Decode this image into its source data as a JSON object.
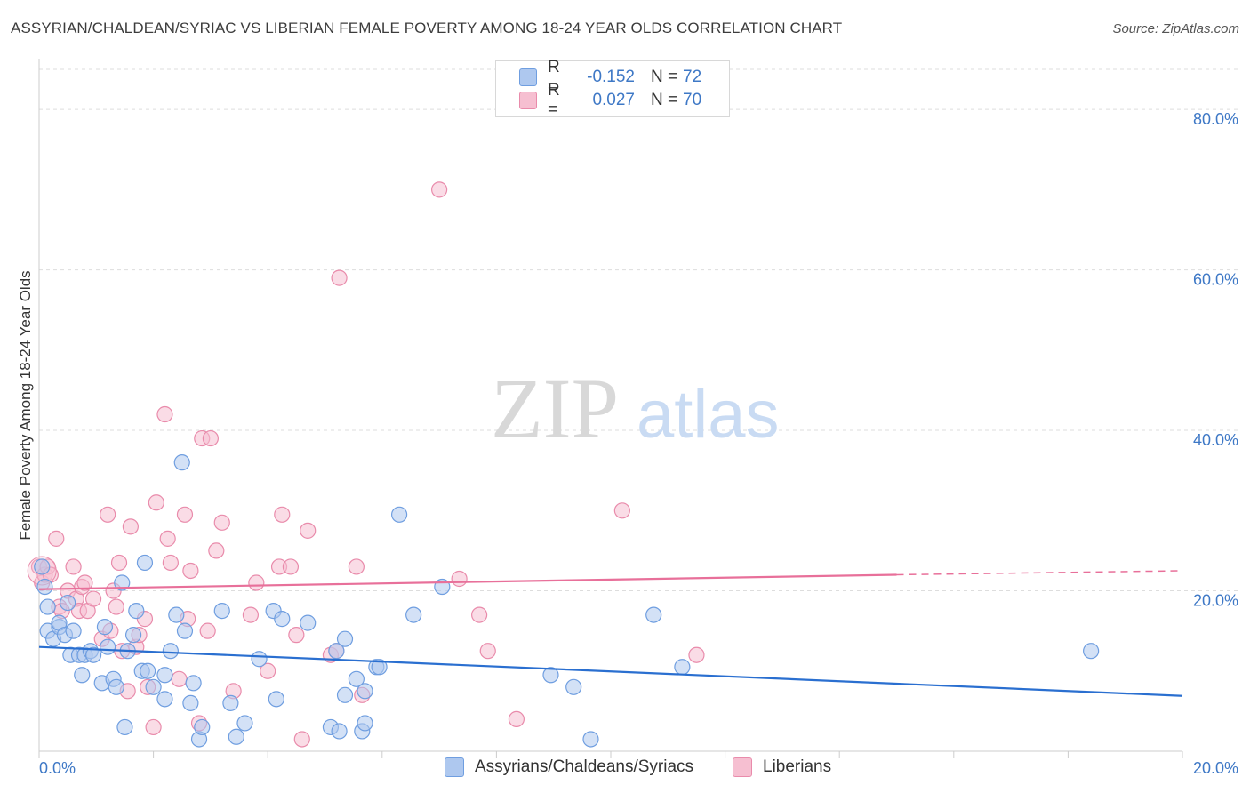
{
  "title": "ASSYRIAN/CHALDEAN/SYRIAC VS LIBERIAN FEMALE POVERTY AMONG 18-24 YEAR OLDS CORRELATION CHART",
  "source": "Source: ZipAtlas.com",
  "watermark": {
    "zip": "ZIP",
    "atlas": "atlas"
  },
  "legend": {
    "rows": [
      {
        "r_label": "R =",
        "r_value": "-0.152",
        "n_label": "N =",
        "n_value": "72"
      },
      {
        "r_label": "R =",
        "r_value": "0.027",
        "n_label": "N =",
        "n_value": "70"
      }
    ]
  },
  "bottom_legend": {
    "series1": "Assyrians/Chaldeans/Syriacs",
    "series2": "Liberians"
  },
  "colors": {
    "blue_fill": "#aec8ef",
    "blue_stroke": "#6f9ee0",
    "blue_line": "#2a6fd0",
    "pink_fill": "#f6bfd1",
    "pink_stroke": "#e98bab",
    "pink_line": "#e8709a",
    "tick_text": "#3e78c6",
    "grid": "#dddddd"
  },
  "chart_data": {
    "type": "scatter",
    "title": "ASSYRIAN/CHALDEAN/SYRIAC VS LIBERIAN FEMALE POVERTY AMONG 18-24 YEAR OLDS CORRELATION CHART",
    "xlabel": "",
    "ylabel": "Female Poverty Among 18-24 Year Olds",
    "xlim": [
      0,
      20
    ],
    "ylim": [
      0,
      85
    ],
    "x_tick_labels": [
      "0.0%",
      "20.0%"
    ],
    "y_ticks": [
      20,
      40,
      60,
      80
    ],
    "y_tick_labels": [
      "20.0%",
      "40.0%",
      "60.0%",
      "80.0%"
    ],
    "grid": true,
    "series": [
      {
        "name": "Assyrians/Chaldeans/Syriacs",
        "trend": {
          "x0": 0,
          "y0": 13.0,
          "x1": 20,
          "y1": 6.9
        },
        "points": [
          [
            0.05,
            23
          ],
          [
            0.1,
            20.5
          ],
          [
            0.15,
            18
          ],
          [
            0.15,
            15
          ],
          [
            0.25,
            14
          ],
          [
            0.35,
            15.5
          ],
          [
            0.35,
            16
          ],
          [
            0.45,
            14.5
          ],
          [
            0.5,
            18.5
          ],
          [
            0.55,
            12
          ],
          [
            0.6,
            15
          ],
          [
            0.7,
            12
          ],
          [
            0.75,
            9.5
          ],
          [
            0.8,
            12
          ],
          [
            0.9,
            12.5
          ],
          [
            0.95,
            12
          ],
          [
            1.1,
            8.5
          ],
          [
            1.15,
            15.5
          ],
          [
            1.2,
            13
          ],
          [
            1.3,
            9
          ],
          [
            1.35,
            8
          ],
          [
            1.45,
            21
          ],
          [
            1.5,
            3
          ],
          [
            1.55,
            12.5
          ],
          [
            1.65,
            14.5
          ],
          [
            1.7,
            17.5
          ],
          [
            1.8,
            10
          ],
          [
            1.85,
            23.5
          ],
          [
            1.9,
            10
          ],
          [
            2.0,
            8
          ],
          [
            2.2,
            6.5
          ],
          [
            2.2,
            9.5
          ],
          [
            2.3,
            12.5
          ],
          [
            2.4,
            17
          ],
          [
            2.5,
            36
          ],
          [
            2.55,
            15
          ],
          [
            2.65,
            6
          ],
          [
            2.7,
            8.5
          ],
          [
            2.8,
            1.5
          ],
          [
            2.85,
            3
          ],
          [
            3.2,
            17.5
          ],
          [
            3.35,
            6
          ],
          [
            3.45,
            1.8
          ],
          [
            3.6,
            3.5
          ],
          [
            3.85,
            11.5
          ],
          [
            4.1,
            17.5
          ],
          [
            4.15,
            6.5
          ],
          [
            4.25,
            16.5
          ],
          [
            4.7,
            16
          ],
          [
            5.1,
            3
          ],
          [
            5.2,
            12.5
          ],
          [
            5.25,
            2.5
          ],
          [
            5.35,
            7
          ],
          [
            5.35,
            14
          ],
          [
            5.55,
            9
          ],
          [
            5.65,
            2.5
          ],
          [
            5.7,
            3.5
          ],
          [
            5.7,
            7.5
          ],
          [
            5.9,
            10.5
          ],
          [
            5.95,
            10.5
          ],
          [
            6.3,
            29.5
          ],
          [
            6.55,
            17
          ],
          [
            7.05,
            20.5
          ],
          [
            8.95,
            9.5
          ],
          [
            9.35,
            8
          ],
          [
            9.65,
            1.5
          ],
          [
            10.75,
            17
          ],
          [
            11.25,
            10.5
          ],
          [
            18.4,
            12.5
          ]
        ]
      },
      {
        "name": "Liberians",
        "trend": {
          "x0": 0,
          "y0": 20.2,
          "x1": 15,
          "y1": 22.0,
          "dash_to_x": 20,
          "dash_to_y": 22.5
        },
        "points": [
          [
            0.0,
            23
          ],
          [
            0.05,
            21
          ],
          [
            0.1,
            22
          ],
          [
            0.15,
            23
          ],
          [
            0.2,
            22
          ],
          [
            0.3,
            26.5
          ],
          [
            0.35,
            18
          ],
          [
            0.4,
            17.5
          ],
          [
            0.5,
            20
          ],
          [
            0.6,
            23
          ],
          [
            0.65,
            19
          ],
          [
            0.7,
            17.5
          ],
          [
            0.75,
            20.5
          ],
          [
            0.8,
            21
          ],
          [
            0.85,
            17.5
          ],
          [
            0.95,
            19
          ],
          [
            1.1,
            14
          ],
          [
            1.2,
            29.5
          ],
          [
            1.25,
            15
          ],
          [
            1.3,
            20
          ],
          [
            1.35,
            18
          ],
          [
            1.4,
            23.5
          ],
          [
            1.45,
            12.5
          ],
          [
            1.55,
            7.5
          ],
          [
            1.6,
            28
          ],
          [
            1.7,
            13
          ],
          [
            1.75,
            14.5
          ],
          [
            1.85,
            16.5
          ],
          [
            1.9,
            8
          ],
          [
            2.0,
            3
          ],
          [
            2.05,
            31
          ],
          [
            2.2,
            42
          ],
          [
            2.25,
            26.5
          ],
          [
            2.3,
            23.5
          ],
          [
            2.45,
            9
          ],
          [
            2.55,
            29.5
          ],
          [
            2.6,
            16.5
          ],
          [
            2.65,
            22.5
          ],
          [
            2.8,
            3.5
          ],
          [
            2.85,
            39
          ],
          [
            2.95,
            15
          ],
          [
            3.0,
            39
          ],
          [
            3.1,
            25
          ],
          [
            3.2,
            28.5
          ],
          [
            3.4,
            7.5
          ],
          [
            3.7,
            17
          ],
          [
            3.8,
            21
          ],
          [
            4.0,
            10
          ],
          [
            4.2,
            23
          ],
          [
            4.25,
            29.5
          ],
          [
            4.4,
            23
          ],
          [
            4.5,
            14.5
          ],
          [
            4.6,
            1.5
          ],
          [
            4.7,
            27.5
          ],
          [
            5.1,
            12
          ],
          [
            5.2,
            12.5
          ],
          [
            5.25,
            59
          ],
          [
            5.55,
            23
          ],
          [
            5.65,
            7
          ],
          [
            7.0,
            70
          ],
          [
            7.35,
            21.5
          ],
          [
            7.7,
            17
          ],
          [
            7.85,
            12.5
          ],
          [
            8.35,
            4
          ],
          [
            10.2,
            30
          ],
          [
            11.5,
            12
          ]
        ]
      }
    ]
  }
}
